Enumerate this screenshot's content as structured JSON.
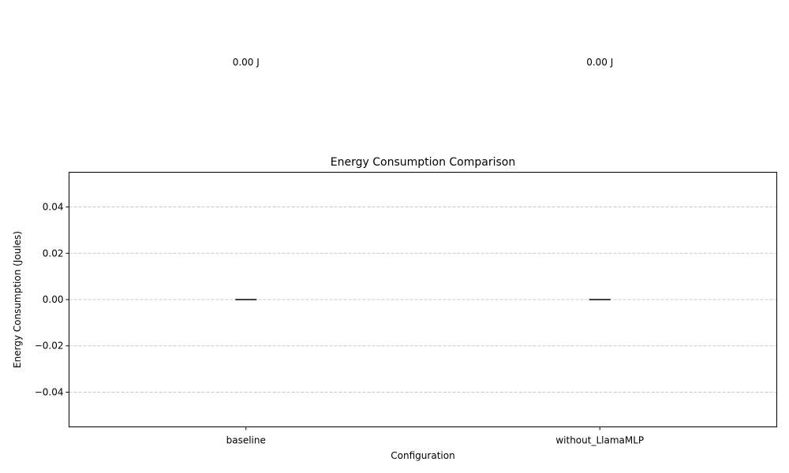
{
  "chart_data": {
    "type": "bar",
    "title": "Energy Consumption Comparison",
    "xlabel": "Configuration",
    "ylabel": "Energy Consumption (Joules)",
    "categories": [
      "baseline",
      "without_LlamaMLP"
    ],
    "values": [
      0.0,
      0.0
    ],
    "data_labels": [
      "0.00 J",
      "0.00 J"
    ],
    "ylim": [
      -0.055,
      0.055
    ],
    "yticks": [
      -0.04,
      -0.02,
      0.0,
      0.02,
      0.04
    ],
    "ytick_labels": [
      "−0.04",
      "−0.02",
      "0.00",
      "0.02",
      "0.04"
    ],
    "grid": "y",
    "colors": {
      "bar": "#000000",
      "grid": "#c8c8c8",
      "axes": "#000000"
    }
  }
}
